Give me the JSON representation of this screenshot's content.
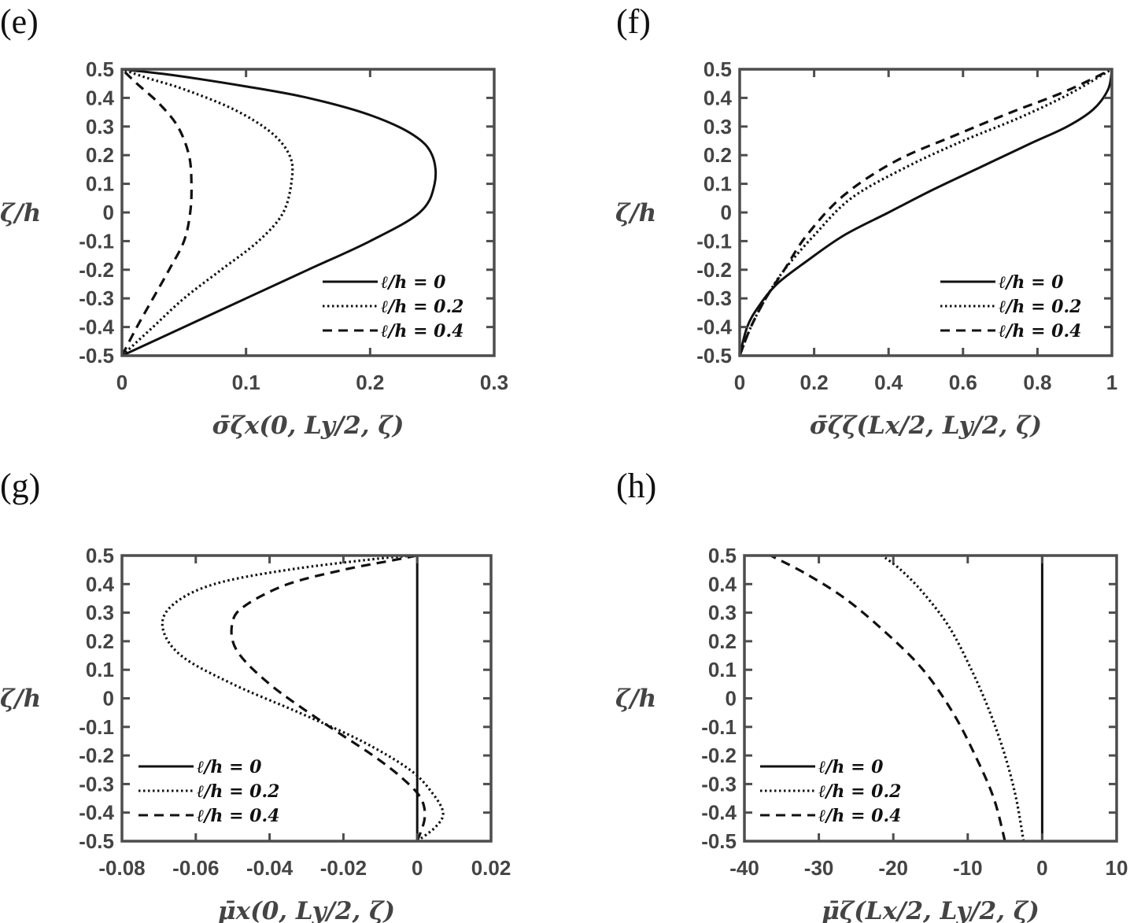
{
  "chart_data": [
    {
      "panel": "(e)",
      "type": "line",
      "xlabel": "σ̄ζx(0, Ly/2, ζ)",
      "ylabel": "ζ/h",
      "xlim": [
        0,
        0.3
      ],
      "ylim": [
        -0.5,
        0.5
      ],
      "xticks": [
        "0",
        "0.1",
        "0.2",
        "0.3"
      ],
      "yticks": [
        "0.5",
        "0.4",
        "0.3",
        "0.2",
        "0.1",
        "0",
        "-0.1",
        "-0.2",
        "-0.3",
        "-0.4",
        "-0.5"
      ],
      "legend_position": "bottom-right",
      "series": [
        {
          "name": "ℓ/h = 0",
          "style": "solid",
          "x": [
            0,
            0.05,
            0.1,
            0.15,
            0.2,
            0.24,
            0.252,
            0.25,
            0.235,
            0.2,
            0.15,
            0.1,
            0.04,
            0
          ],
          "y": [
            -0.5,
            -0.4,
            -0.3,
            -0.2,
            -0.1,
            0.0,
            0.1,
            0.2,
            0.27,
            0.34,
            0.4,
            0.44,
            0.48,
            0.5
          ]
        },
        {
          "name": "ℓ/h = 0.2",
          "style": "dotted",
          "x": [
            0,
            0.025,
            0.05,
            0.08,
            0.11,
            0.13,
            0.137,
            0.135,
            0.12,
            0.09,
            0.05,
            0.02,
            0
          ],
          "y": [
            -0.5,
            -0.4,
            -0.3,
            -0.2,
            -0.1,
            0.0,
            0.12,
            0.2,
            0.28,
            0.36,
            0.43,
            0.47,
            0.5
          ]
        },
        {
          "name": "ℓ/h = 0.4",
          "style": "dashed",
          "x": [
            0,
            0.012,
            0.025,
            0.038,
            0.05,
            0.055,
            0.056,
            0.054,
            0.045,
            0.03,
            0.012,
            0
          ],
          "y": [
            -0.5,
            -0.4,
            -0.3,
            -0.2,
            -0.1,
            0.0,
            0.1,
            0.2,
            0.3,
            0.38,
            0.45,
            0.5
          ]
        }
      ]
    },
    {
      "panel": "(f)",
      "type": "line",
      "xlabel": "σ̄ζζ(Lx/2, Ly/2, ζ)",
      "ylabel": "ζ/h",
      "xlim": [
        0,
        1
      ],
      "ylim": [
        -0.5,
        0.5
      ],
      "xticks": [
        "0",
        "0.2",
        "0.4",
        "0.6",
        "0.8",
        "1"
      ],
      "yticks": [
        "0.5",
        "0.4",
        "0.3",
        "0.2",
        "0.1",
        "0",
        "-0.1",
        "-0.2",
        "-0.3",
        "-0.4",
        "-0.5"
      ],
      "legend_position": "bottom-right",
      "series": [
        {
          "name": "ℓ/h = 0",
          "style": "solid",
          "x": [
            0,
            0.02,
            0.05,
            0.1,
            0.18,
            0.28,
            0.4,
            0.52,
            0.65,
            0.78,
            0.88,
            0.95,
            0.99,
            1
          ],
          "y": [
            -0.5,
            -0.4,
            -0.33,
            -0.25,
            -0.17,
            -0.08,
            0.0,
            0.08,
            0.16,
            0.24,
            0.3,
            0.36,
            0.43,
            0.5
          ]
        },
        {
          "name": "ℓ/h = 0.2",
          "style": "dotted",
          "x": [
            0,
            0.03,
            0.07,
            0.12,
            0.2,
            0.3,
            0.45,
            0.6,
            0.75,
            0.88,
            1
          ],
          "y": [
            -0.5,
            -0.4,
            -0.3,
            -0.2,
            -0.08,
            0.05,
            0.16,
            0.25,
            0.33,
            0.41,
            0.5
          ]
        },
        {
          "name": "ℓ/h = 0.4",
          "style": "dashed",
          "x": [
            0,
            0.03,
            0.07,
            0.12,
            0.18,
            0.28,
            0.42,
            0.58,
            0.73,
            0.87,
            1
          ],
          "y": [
            -0.5,
            -0.4,
            -0.3,
            -0.2,
            -0.08,
            0.06,
            0.18,
            0.27,
            0.35,
            0.42,
            0.5
          ]
        }
      ]
    },
    {
      "panel": "(g)",
      "type": "line",
      "xlabel": "μ̄x(0, Ly/2, ζ)",
      "ylabel": "ζ/h",
      "xlim": [
        -0.08,
        0.02
      ],
      "ylim": [
        -0.5,
        0.5
      ],
      "xticks": [
        "-0.08",
        "-0.06",
        "-0.04",
        "-0.02",
        "0",
        "0.02"
      ],
      "yticks": [
        "0.5",
        "0.4",
        "0.3",
        "0.2",
        "0.1",
        "0",
        "-0.1",
        "-0.2",
        "-0.3",
        "-0.4",
        "-0.5"
      ],
      "legend_position": "bottom-left",
      "series": [
        {
          "name": "ℓ/h = 0",
          "style": "solid",
          "x": [
            0,
            0
          ],
          "y": [
            -0.5,
            0.5
          ]
        },
        {
          "name": "ℓ/h = 0.2",
          "style": "dotted",
          "x": [
            0,
            0.005,
            0.007,
            0.004,
            -0.002,
            -0.015,
            -0.032,
            -0.05,
            -0.064,
            -0.069,
            -0.066,
            -0.055,
            -0.035,
            -0.01,
            0
          ],
          "y": [
            -0.5,
            -0.45,
            -0.4,
            -0.33,
            -0.25,
            -0.15,
            -0.05,
            0.05,
            0.15,
            0.25,
            0.33,
            0.4,
            0.45,
            0.49,
            0.5
          ]
        },
        {
          "name": "ℓ/h = 0.4",
          "style": "dashed",
          "x": [
            0,
            0.002,
            0.001,
            -0.004,
            -0.012,
            -0.026,
            -0.04,
            -0.049,
            -0.05,
            -0.046,
            -0.035,
            -0.02,
            -0.008,
            0
          ],
          "y": [
            -0.5,
            -0.42,
            -0.35,
            -0.28,
            -0.2,
            -0.08,
            0.05,
            0.17,
            0.27,
            0.33,
            0.4,
            0.45,
            0.48,
            0.5
          ]
        }
      ]
    },
    {
      "panel": "(h)",
      "type": "line",
      "xlabel": "μ̄ζ(Lx/2, Ly/2, ζ)",
      "ylabel": "ζ/h",
      "xlim": [
        -40,
        10
      ],
      "ylim": [
        -0.5,
        0.5
      ],
      "xticks": [
        "-40",
        "-30",
        "-20",
        "-10",
        "0",
        "10"
      ],
      "yticks": [
        "0.5",
        "0.4",
        "0.3",
        "0.2",
        "0.1",
        "0",
        "-0.1",
        "-0.2",
        "-0.3",
        "-0.4",
        "-0.5"
      ],
      "legend_position": "bottom-left",
      "series": [
        {
          "name": "ℓ/h = 0",
          "style": "solid",
          "x": [
            0,
            0
          ],
          "y": [
            -0.5,
            0.5
          ]
        },
        {
          "name": "ℓ/h = 0.2",
          "style": "dotted",
          "x": [
            -2.5,
            -3.5,
            -5,
            -7,
            -9.5,
            -12.5,
            -16,
            -19,
            -21.5
          ],
          "y": [
            -0.5,
            -0.35,
            -0.2,
            -0.05,
            0.1,
            0.25,
            0.37,
            0.45,
            0.5
          ]
        },
        {
          "name": "ℓ/h = 0.4",
          "style": "dashed",
          "x": [
            -5,
            -6.5,
            -9,
            -12,
            -16,
            -21,
            -26.5,
            -32,
            -36.5
          ],
          "y": [
            -0.5,
            -0.35,
            -0.2,
            -0.05,
            0.1,
            0.23,
            0.35,
            0.44,
            0.5
          ]
        }
      ]
    }
  ]
}
